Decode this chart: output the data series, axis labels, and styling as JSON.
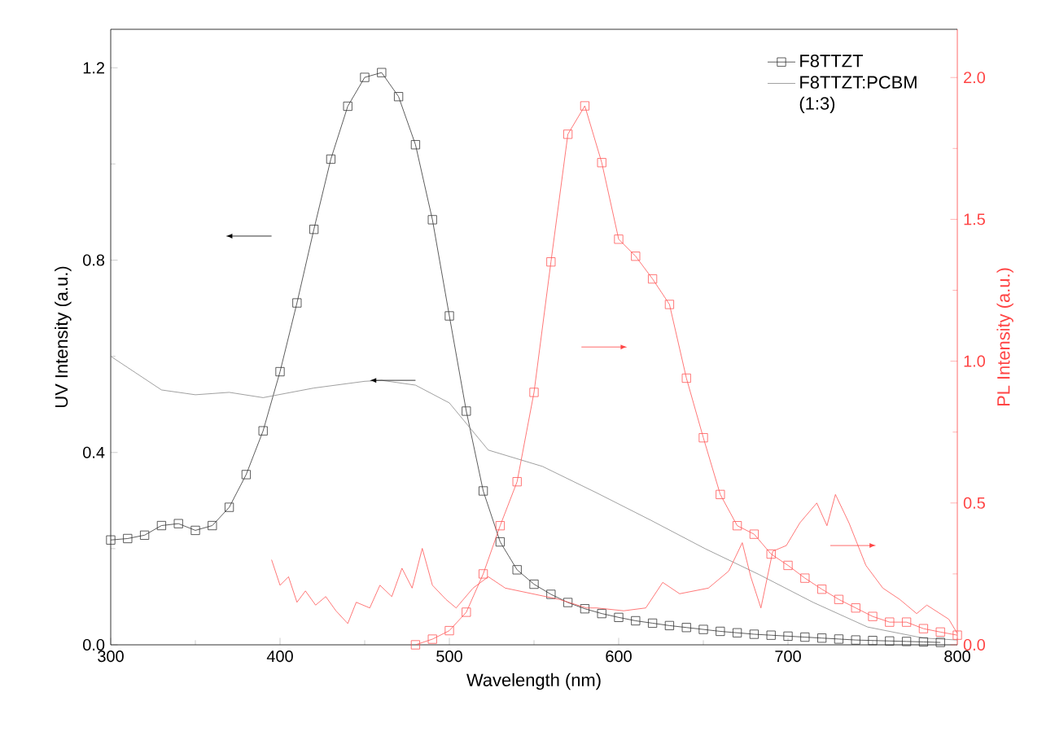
{
  "chart_data": {
    "type": "line",
    "xlabel": "Wavelength (nm)",
    "ylabel": "UV Intensity (a.u.)",
    "y2label": "PL Intensity (a.u.)",
    "xlim": [
      300,
      800
    ],
    "xticks": [
      300,
      400,
      500,
      600,
      700,
      800
    ],
    "ylim": [
      0,
      1.28
    ],
    "yticks": [
      {
        "value": 0,
        "label": "0.0"
      },
      {
        "value": 0.4,
        "label": "0.4"
      },
      {
        "value": 0.8,
        "label": "0.8"
      },
      {
        "value": 1.2,
        "label": "1.2"
      }
    ],
    "y2lim": [
      0,
      2.17
    ],
    "y2ticks": [
      {
        "value": 0,
        "label": "0.0"
      },
      {
        "value": 0.5,
        "label": "0.5"
      },
      {
        "value": 1,
        "label": "1.0"
      },
      {
        "value": 1.5,
        "label": "1.5"
      },
      {
        "value": 2,
        "label": "2.0"
      }
    ],
    "legend": "top right",
    "grid": false,
    "series": [
      {
        "name": "F8TTZT",
        "color": "#333333",
        "marker": "square",
        "x": [
          300,
          310,
          320,
          330,
          340,
          350,
          360,
          370,
          380,
          390,
          400,
          410,
          420,
          430,
          440,
          450,
          460,
          470,
          480,
          490,
          500,
          510,
          520,
          530,
          540,
          550,
          560,
          570,
          580,
          590,
          600,
          610,
          620,
          630,
          640,
          650,
          660,
          670,
          680,
          690,
          700,
          710,
          720,
          730,
          740,
          750,
          760,
          770,
          780,
          790
        ],
        "values": [
          0.218,
          0.221,
          0.228,
          0.248,
          0.252,
          0.238,
          0.248,
          0.286,
          0.354,
          0.445,
          0.568,
          0.711,
          0.864,
          1.01,
          1.12,
          1.18,
          1.19,
          1.14,
          1.04,
          0.884,
          0.684,
          0.486,
          0.32,
          0.214,
          0.156,
          0.126,
          0.105,
          0.088,
          0.075,
          0.065,
          0.057,
          0.05,
          0.045,
          0.04,
          0.036,
          0.032,
          0.028,
          0.025,
          0.022,
          0.02,
          0.018,
          0.016,
          0.014,
          0.012,
          0.01,
          0.009,
          0.008,
          0.007,
          0.006,
          0.005
        ]
      },
      {
        "name": "F8TTZT:PCBM (1:3)",
        "color": "#888888",
        "marker": "none",
        "x": [
          300,
          330,
          350,
          370,
          390,
          420,
          450,
          460,
          480,
          500,
          523,
          555,
          587,
          619,
          651,
          683,
          715,
          747,
          780,
          800
        ],
        "values": [
          0.6,
          0.53,
          0.52,
          0.525,
          0.514,
          0.534,
          0.548,
          0.55,
          0.54,
          0.503,
          0.405,
          0.371,
          0.316,
          0.259,
          0.2,
          0.146,
          0.088,
          0.037,
          0.014,
          0.01
        ]
      },
      {
        "color": "#ff5555",
        "marker": "square",
        "axis": "y2",
        "x": [
          480,
          490,
          500,
          510,
          520,
          530,
          540,
          550,
          560,
          570,
          580,
          590,
          600,
          610,
          620,
          630,
          640,
          650,
          660,
          670,
          680,
          690,
          700,
          710,
          720,
          730,
          740,
          750,
          760,
          770,
          780,
          790,
          800
        ],
        "values": [
          0,
          0.02,
          0.05,
          0.115,
          0.25,
          0.42,
          0.575,
          0.89,
          1.35,
          1.8,
          1.9,
          1.7,
          1.43,
          1.37,
          1.29,
          1.2,
          0.94,
          0.73,
          0.53,
          0.42,
          0.39,
          0.32,
          0.28,
          0.235,
          0.196,
          0.16,
          0.13,
          0.1,
          0.08,
          0.08,
          0.057,
          0.045,
          0.034
        ]
      },
      {
        "color": "#ff5555",
        "marker": "none",
        "axis": "y2",
        "x": [
          395,
          400,
          405,
          410,
          415,
          421,
          427,
          433,
          440,
          445,
          453,
          459,
          466,
          472,
          478,
          484,
          490,
          498,
          504,
          514,
          523,
          533,
          549,
          565,
          581,
          587,
          603,
          616,
          626,
          636,
          653,
          665,
          673,
          678,
          684,
          691,
          699,
          707,
          717,
          723,
          728,
          736,
          746,
          756,
          766,
          776,
          782,
          795,
          800
        ],
        "values": [
          0.3,
          0.21,
          0.24,
          0.15,
          0.19,
          0.14,
          0.17,
          0.12,
          0.075,
          0.15,
          0.13,
          0.21,
          0.17,
          0.27,
          0.2,
          0.34,
          0.21,
          0.16,
          0.13,
          0.2,
          0.24,
          0.2,
          0.18,
          0.16,
          0.13,
          0.13,
          0.12,
          0.13,
          0.22,
          0.18,
          0.2,
          0.26,
          0.36,
          0.24,
          0.13,
          0.33,
          0.35,
          0.43,
          0.5,
          0.42,
          0.53,
          0.43,
          0.28,
          0.2,
          0.16,
          0.11,
          0.14,
          0.09,
          0.04
        ]
      }
    ]
  }
}
